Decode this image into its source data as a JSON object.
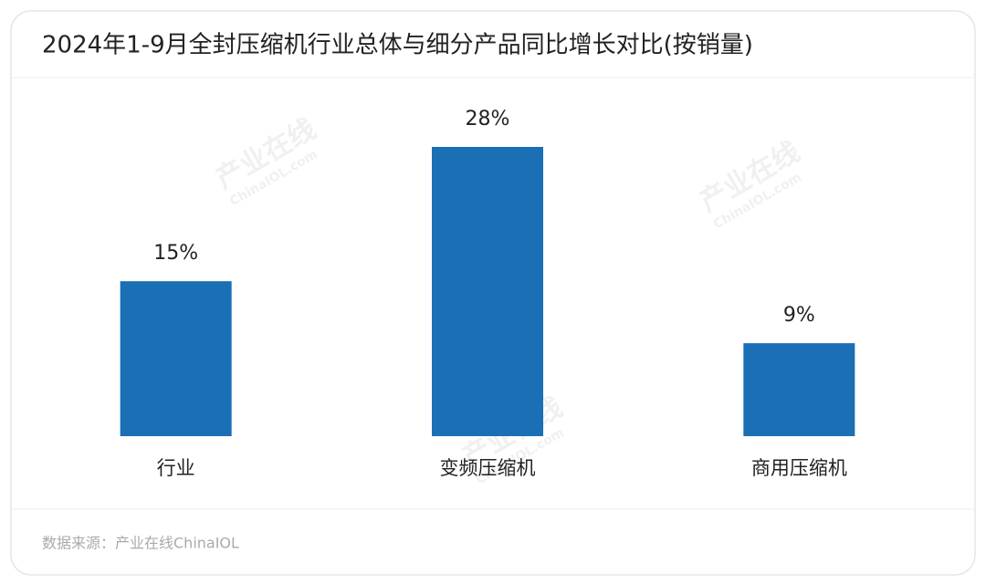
{
  "chart_data": {
    "type": "bar",
    "title": "2024年1-9月全封压缩机行业总体与细分产品同比增长对比(按销量)",
    "categories": [
      "行业",
      "变频压缩机",
      "商用压缩机"
    ],
    "values": [
      15,
      28,
      9
    ],
    "value_labels": [
      "15%",
      "28%",
      "9%"
    ],
    "color": "#1a6fb5"
  },
  "source": "数据来源：产业在线ChinaIOL",
  "watermark": {
    "name": "产业在线",
    "site": "ChinaIOL.com"
  }
}
